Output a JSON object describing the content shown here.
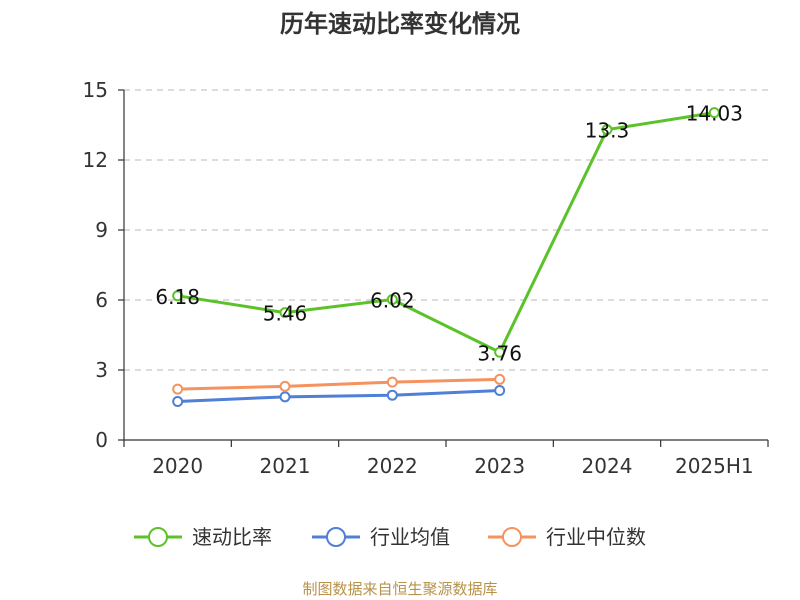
{
  "chart_data": {
    "type": "line",
    "title": "历年速动比率变化情况",
    "categories": [
      "2020",
      "2021",
      "2022",
      "2023",
      "2024",
      "2025H1"
    ],
    "y_ticks": [
      "0",
      "3",
      "6",
      "9",
      "12",
      "15"
    ],
    "ylim": [
      0,
      15
    ],
    "grid": true,
    "legend_position": "bottom",
    "series": [
      {
        "name": "速动比率",
        "color": "#5bc229",
        "values": [
          6.18,
          5.46,
          6.02,
          3.76,
          13.3,
          14.03
        ],
        "labels": [
          "6.18",
          "5.46",
          "6.02",
          "3.76",
          "13.3",
          "14.03"
        ]
      },
      {
        "name": "行业均值",
        "color": "#4f7fd6",
        "values": [
          1.65,
          1.85,
          1.92,
          2.12,
          null,
          null
        ]
      },
      {
        "name": "行业中位数",
        "color": "#f5925e",
        "values": [
          2.18,
          2.3,
          2.48,
          2.6,
          null,
          null
        ]
      }
    ],
    "source": "制图数据来自恒生聚源数据库"
  }
}
